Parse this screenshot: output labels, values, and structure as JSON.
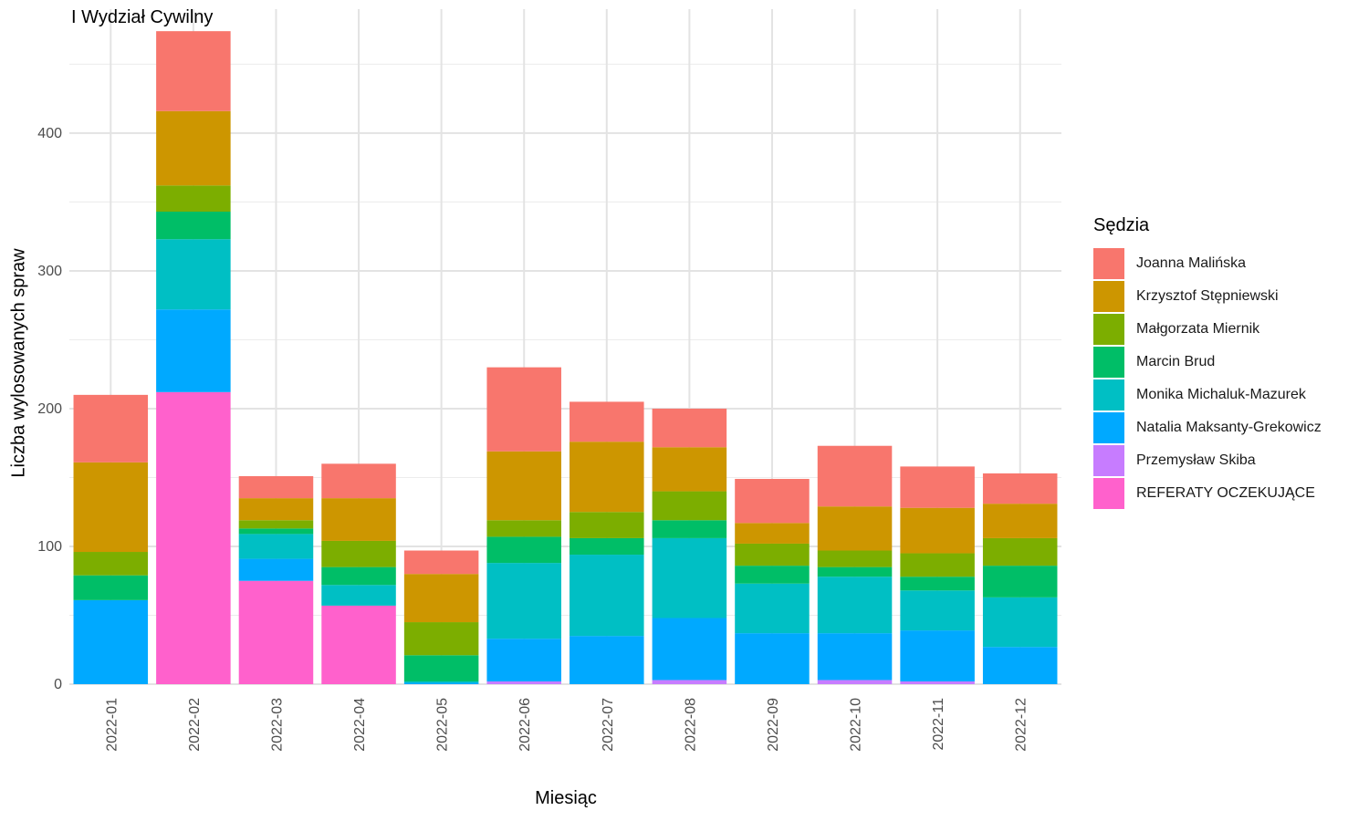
{
  "chart_data": {
    "type": "bar",
    "stacked": true,
    "title": "I Wydział Cywilny",
    "xlabel": "Miesiąc",
    "ylabel": "Liczba wylosowanych spraw",
    "ylim": [
      0,
      490
    ],
    "yticks": [
      0,
      100,
      200,
      300,
      400
    ],
    "grid": true,
    "legend_position": "right",
    "legend_title": "Sędzia",
    "categories": [
      "2022-01",
      "2022-02",
      "2022-03",
      "2022-04",
      "2022-05",
      "2022-06",
      "2022-07",
      "2022-08",
      "2022-09",
      "2022-10",
      "2022-11",
      "2022-12"
    ],
    "series": [
      {
        "name": "Joanna Malińska",
        "color": "#F8766D",
        "values": [
          49,
          58,
          16,
          25,
          17,
          61,
          29,
          28,
          32,
          44,
          30,
          22
        ]
      },
      {
        "name": "Krzysztof Stępniewski",
        "color": "#CD9600",
        "values": [
          65,
          54,
          16,
          31,
          35,
          50,
          51,
          32,
          15,
          32,
          33,
          25
        ]
      },
      {
        "name": "Małgorzata Miernik",
        "color": "#7CAE00",
        "values": [
          17,
          19,
          6,
          19,
          24,
          12,
          19,
          21,
          16,
          12,
          17,
          20
        ]
      },
      {
        "name": "Marcin Brud",
        "color": "#00BE67",
        "values": [
          18,
          20,
          4,
          13,
          19,
          19,
          12,
          13,
          13,
          7,
          10,
          23
        ]
      },
      {
        "name": "Monika Michaluk-Mazurek",
        "color": "#00BFC4",
        "values": [
          0,
          51,
          18,
          15,
          1,
          55,
          59,
          58,
          36,
          41,
          29,
          36
        ]
      },
      {
        "name": "Natalia Maksanty-Grekowicz",
        "color": "#00A9FF",
        "values": [
          61,
          60,
          16,
          0,
          1,
          31,
          35,
          45,
          37,
          34,
          37,
          27
        ]
      },
      {
        "name": "Przemysław Skiba",
        "color": "#C77CFF",
        "values": [
          0,
          0,
          0,
          0,
          0,
          2,
          0,
          3,
          0,
          3,
          2,
          0
        ]
      },
      {
        "name": "REFERATY OCZEKUJĄCE",
        "color": "#FF61CC",
        "values": [
          0,
          212,
          75,
          57,
          0,
          0,
          0,
          0,
          0,
          0,
          0,
          0
        ]
      }
    ]
  }
}
